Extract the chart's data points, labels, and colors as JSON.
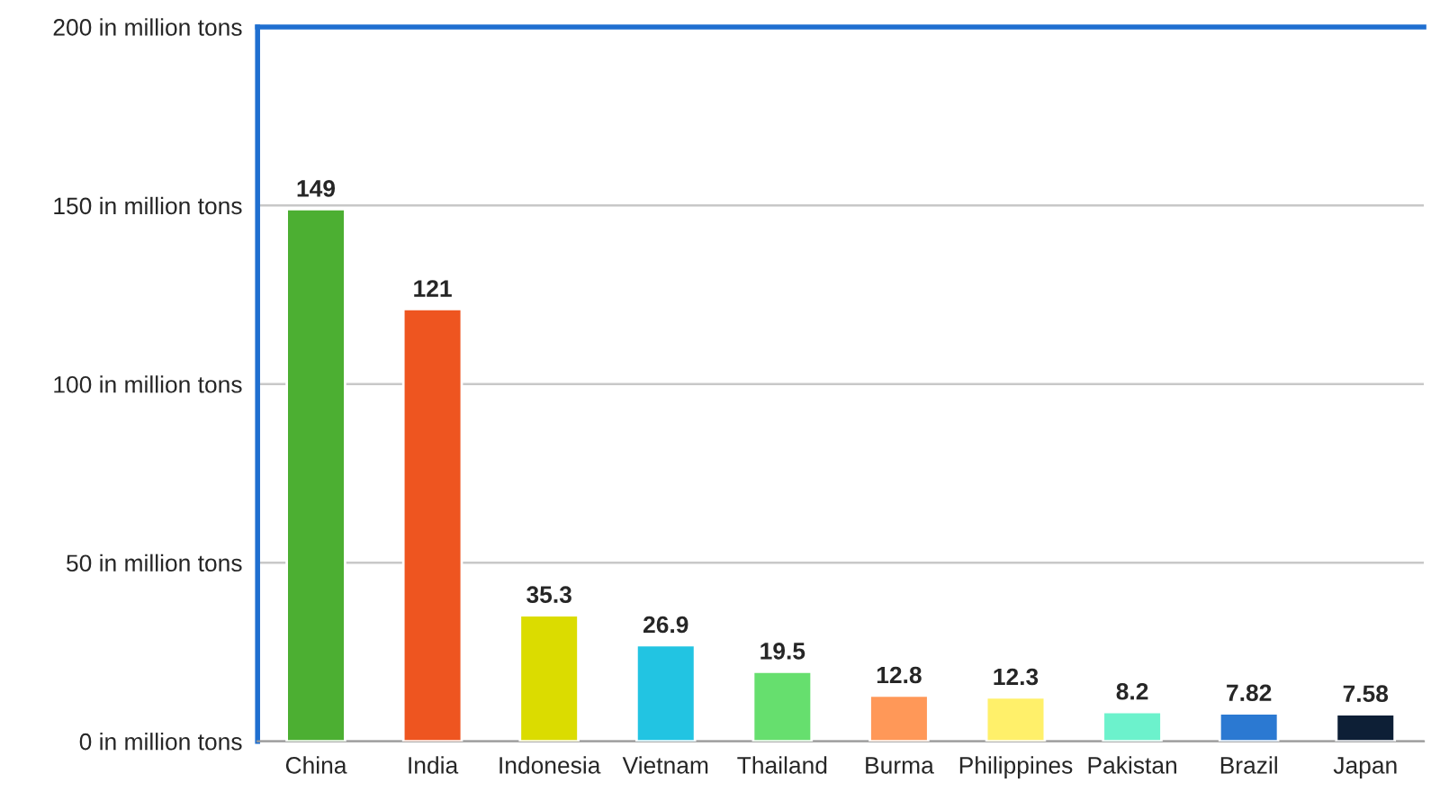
{
  "chart_data": {
    "type": "bar",
    "categories": [
      "China",
      "India",
      "Indonesia",
      "Vietnam",
      "Thailand",
      "Burma",
      "Philippines",
      "Pakistan",
      "Brazil",
      "Japan"
    ],
    "values": [
      149,
      121,
      35.3,
      26.9,
      19.5,
      12.8,
      12.3,
      8.2,
      7.82,
      7.58
    ],
    "colors": [
      "#4caf32",
      "#ee5520",
      "#dbdc00",
      "#22c4e2",
      "#66df6e",
      "#ff9858",
      "#fff06a",
      "#6cf2cc",
      "#2b79d2",
      "#0d1f36"
    ],
    "ylim": [
      0,
      200
    ],
    "yticks": [
      {
        "value": 0,
        "label": "0 in million tons"
      },
      {
        "value": 50,
        "label": "50 in million tons"
      },
      {
        "value": 100,
        "label": "100 in million tons"
      },
      {
        "value": 150,
        "label": "150 in million tons"
      },
      {
        "value": 200,
        "label": "200 in million tons"
      }
    ],
    "grid": "y",
    "data_labels": true,
    "legend": false
  }
}
